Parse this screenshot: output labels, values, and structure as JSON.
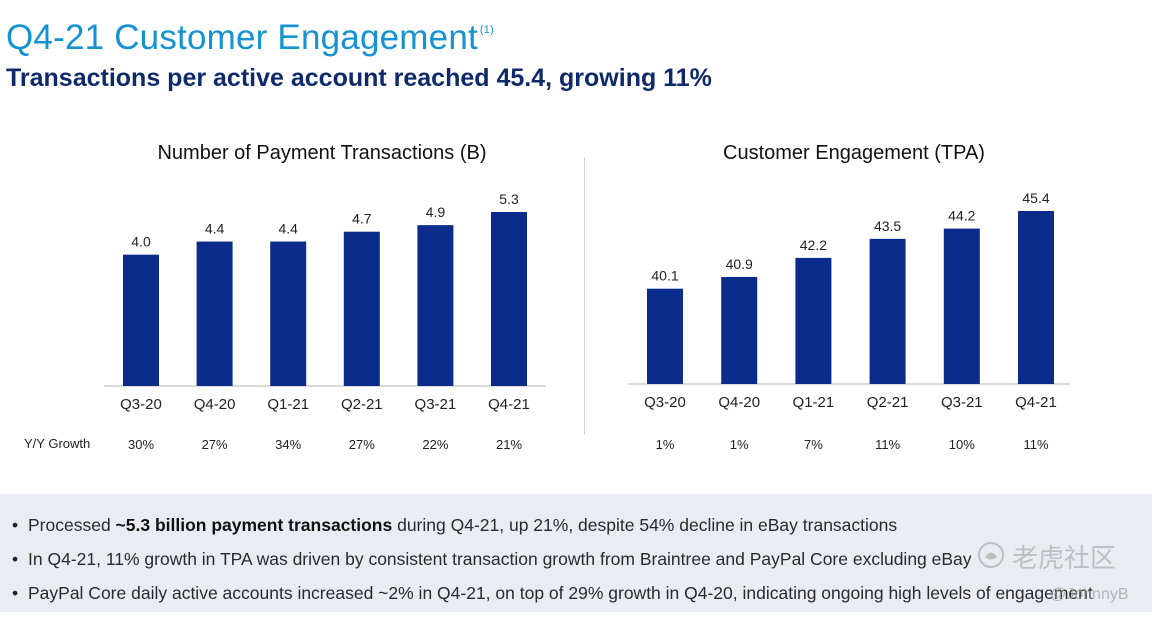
{
  "header": {
    "title": "Q4-21 Customer Engagement",
    "title_footnote": "(1)",
    "subtitle": "Transactions per active account reached 45.4, growing 11%"
  },
  "growth_row_label": "Y/Y Growth",
  "chart_data": [
    {
      "type": "bar",
      "title": "Number of Payment Transactions (B)",
      "categories": [
        "Q3-20",
        "Q4-20",
        "Q1-21",
        "Q2-21",
        "Q3-21",
        "Q4-21"
      ],
      "values": [
        4.0,
        4.4,
        4.4,
        4.7,
        4.9,
        5.3
      ],
      "value_labels": [
        "4.0",
        "4.4",
        "4.4",
        "4.7",
        "4.9",
        "5.3"
      ],
      "growth": [
        "30%",
        "27%",
        "34%",
        "27%",
        "22%",
        "21%"
      ],
      "ylim": [
        0,
        5.3
      ],
      "color": "#0b2c8a",
      "grid": false
    },
    {
      "type": "bar",
      "title": "Customer Engagement (TPA)",
      "categories": [
        "Q3-20",
        "Q4-20",
        "Q1-21",
        "Q2-21",
        "Q3-21",
        "Q4-21"
      ],
      "values": [
        40.1,
        40.9,
        42.2,
        43.5,
        44.2,
        45.4
      ],
      "value_labels": [
        "40.1",
        "40.9",
        "42.2",
        "43.5",
        "44.2",
        "45.4"
      ],
      "growth": [
        "1%",
        "1%",
        "7%",
        "11%",
        "10%",
        "11%"
      ],
      "ylim": [
        33.6,
        45.4
      ],
      "color": "#0b2c8a",
      "grid": false
    }
  ],
  "bullets": [
    {
      "pre": "Processed ",
      "bold": "~5.3 billion payment transactions",
      "post": " during Q4-21, up 21%, despite 54% decline in eBay transactions"
    },
    {
      "pre": "In Q4-21, 11% growth in TPA was driven by consistent transaction growth from Braintree and PayPal Core excluding eBay",
      "bold": "",
      "post": ""
    },
    {
      "pre": "PayPal Core daily active accounts increased ~2% in Q4-21, on top of 29% growth in Q4-20, indicating ongoing high levels of engagement",
      "bold": "",
      "post": ""
    }
  ],
  "bullet_symbol": "•",
  "watermark": {
    "text": "老虎社区",
    "user": "@JohnnyB",
    "icon": "tiger-logo-icon"
  }
}
